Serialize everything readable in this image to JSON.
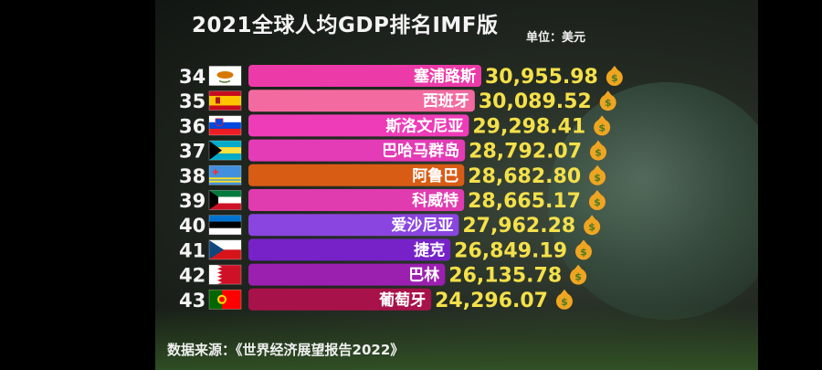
{
  "title": "2021全球人均GDP排名IMF版",
  "unit": "单位：美元",
  "source": "数据来源：《世界经济展望报告2022》",
  "colors": {
    "background": "#000000",
    "value_text": "#f4e04a",
    "money_bag": "#f0a521"
  },
  "chart_data": {
    "type": "bar",
    "orientation": "horizontal",
    "title": "2021全球人均GDP排名IMF版",
    "unit": "单位：美元",
    "ranks": [
      34,
      35,
      36,
      37,
      38,
      39,
      40,
      41,
      42,
      43
    ],
    "categories": [
      "塞浦路斯",
      "西班牙",
      "斯洛文尼亚",
      "巴哈马群岛",
      "阿鲁巴",
      "科威特",
      "爱沙尼亚",
      "捷克",
      "巴林",
      "葡萄牙"
    ],
    "values": [
      30955.98,
      30089.52,
      29298.41,
      28792.07,
      28682.8,
      28665.17,
      27962.28,
      26849.19,
      26135.78,
      24296.07
    ],
    "value_labels": [
      "30,955.98",
      "30,089.52",
      "29,298.41",
      "28,792.07",
      "28,682.80",
      "28,665.17",
      "27,962.28",
      "26,849.19",
      "26,135.78",
      "24,296.07"
    ],
    "bar_colors": [
      "#ec3aa8",
      "#f36aa0",
      "#ee3cb8",
      "#e43bb6",
      "#d95c14",
      "#e03cb0",
      "#8a45e0",
      "#7622c8",
      "#9b20b0",
      "#a8124a"
    ],
    "flags": [
      "cyprus-flag",
      "spain-flag",
      "slovenia-flag",
      "bahamas-flag",
      "aruba-flag",
      "kuwait-flag",
      "estonia-flag",
      "czech-flag",
      "bahrain-flag",
      "portugal-flag"
    ],
    "icon": "money-bag-icon",
    "icon_symbol": "$",
    "legend": "none",
    "grid": false
  }
}
